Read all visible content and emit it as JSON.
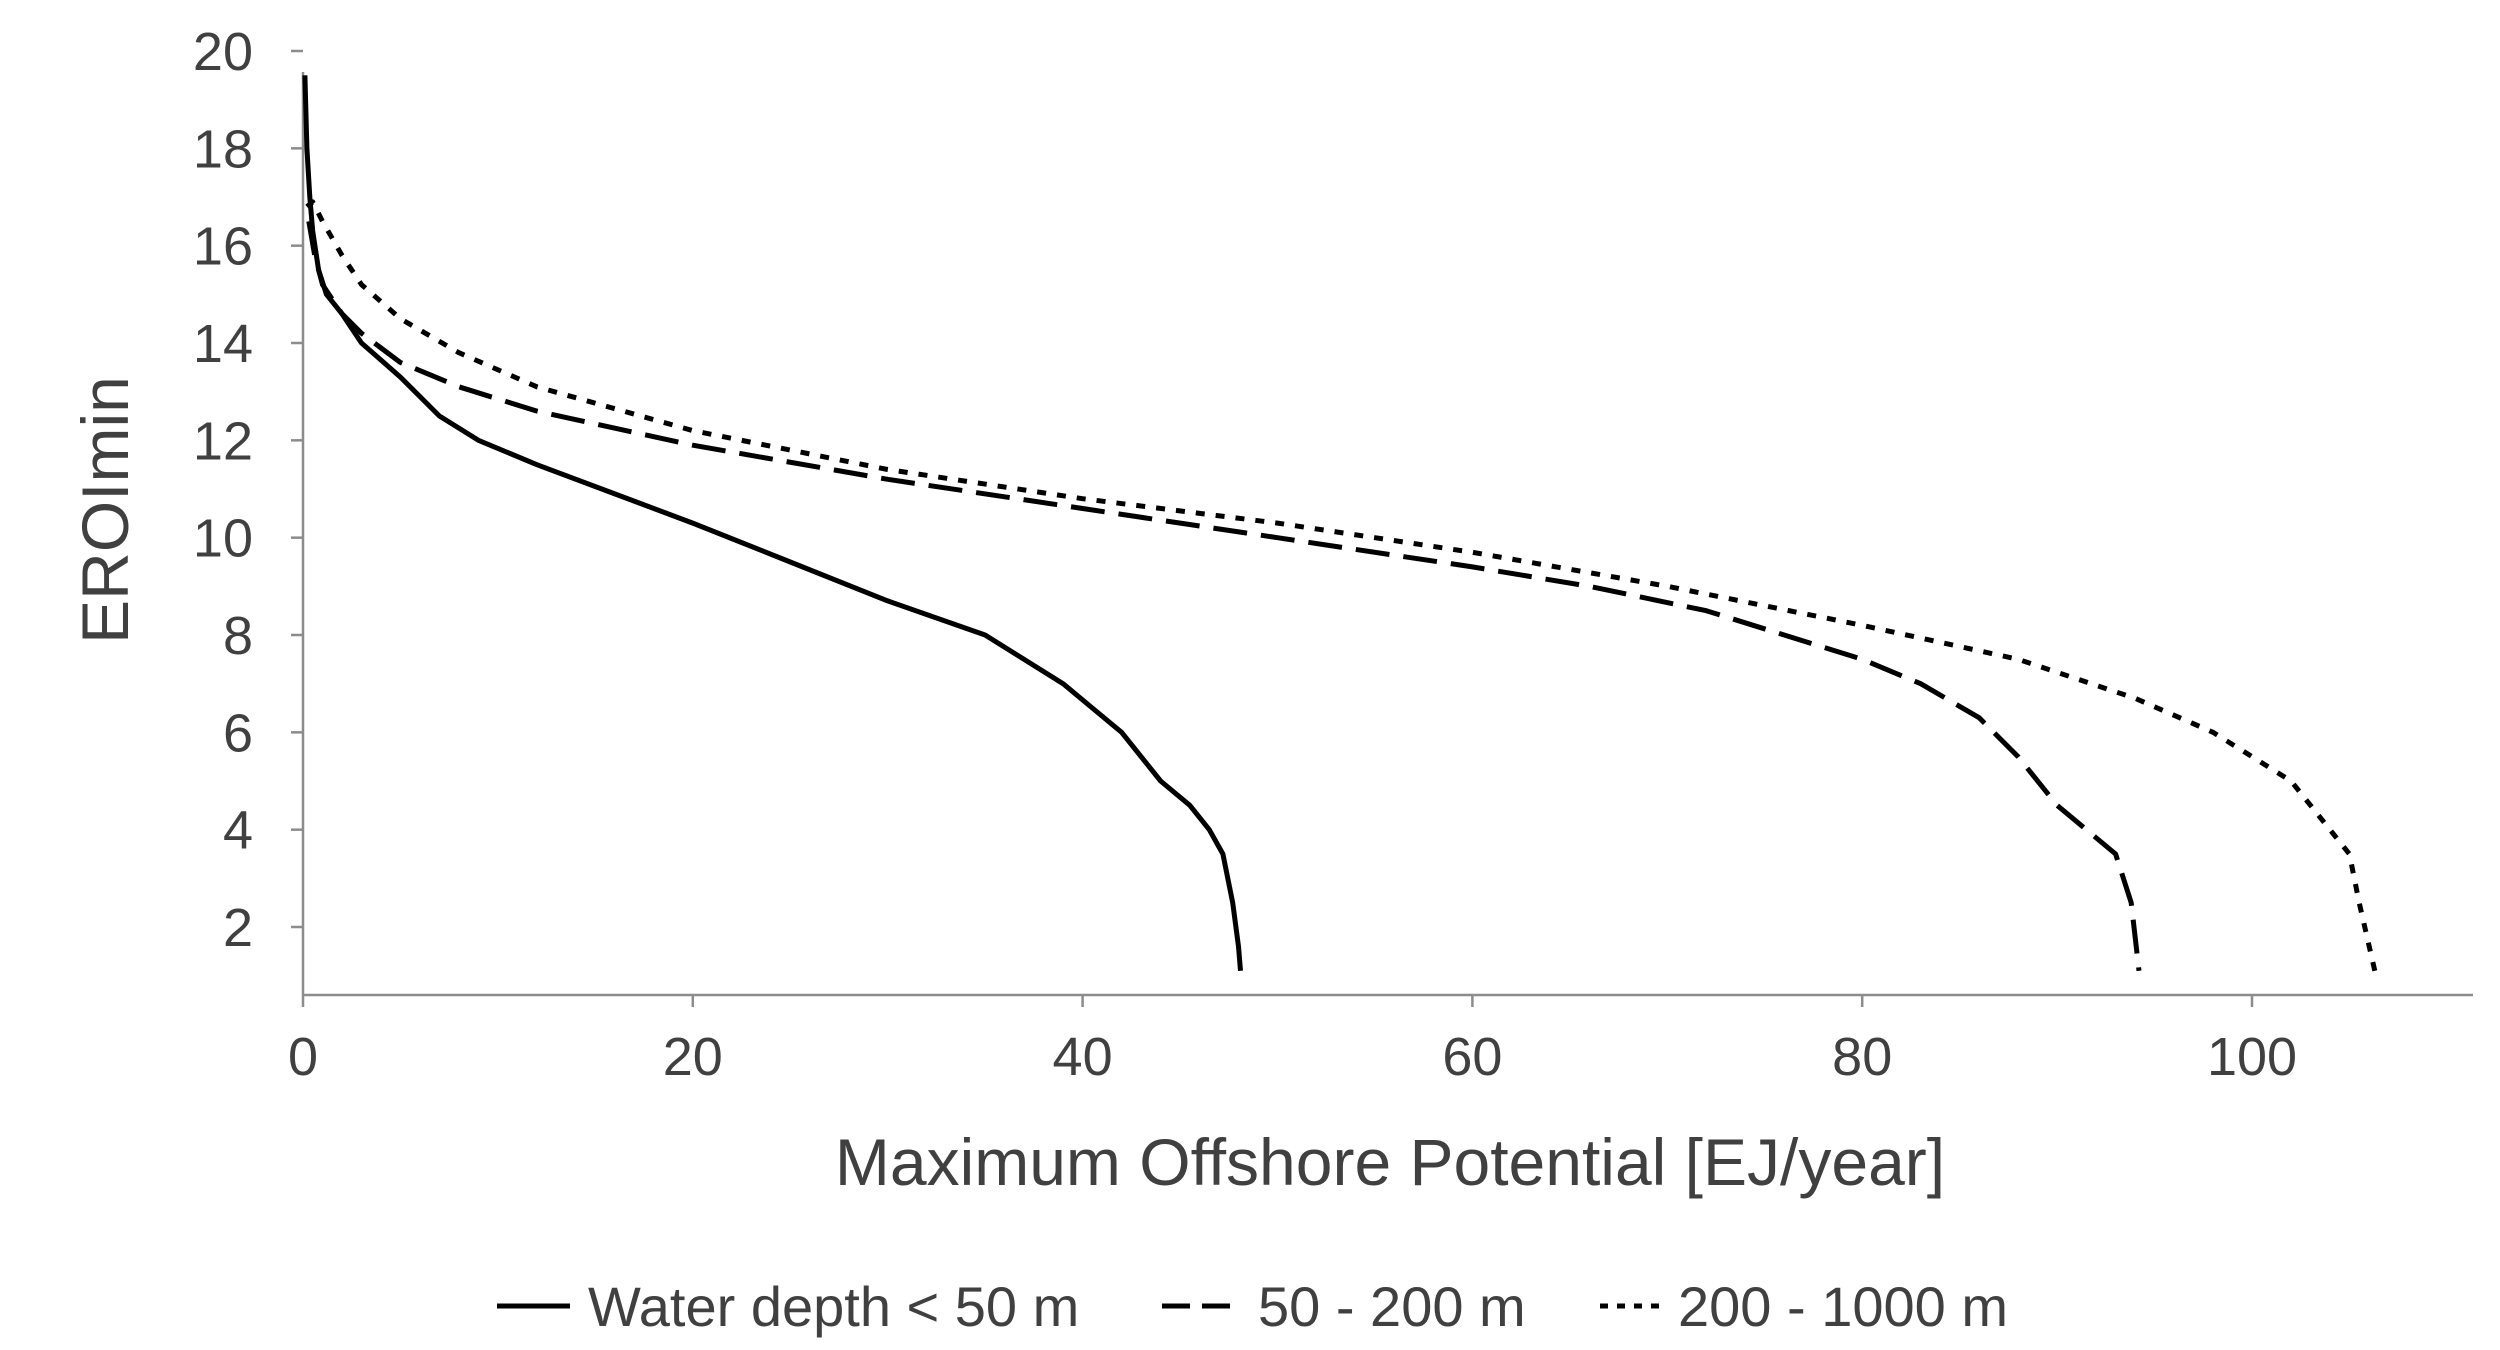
{
  "chart_data": {
    "type": "line",
    "title": "",
    "xlabel": "Maximum Offshore Potential [EJ/year]",
    "ylabel": "EROImin",
    "xlim": [
      0,
      111.6
    ],
    "ylim": [
      1.3,
      20
    ],
    "x_ticks": [
      0,
      20,
      40,
      60,
      80,
      100
    ],
    "y_ticks": [
      2,
      4,
      6,
      8,
      10,
      12,
      14,
      16,
      18,
      20
    ],
    "grid": false,
    "legend_position": "bottom-center",
    "series": [
      {
        "name": "Water depth < 50 m",
        "dash": "solid",
        "color": "#000000",
        "points": [
          [
            0.1,
            19.5
          ],
          [
            0.2,
            18
          ],
          [
            0.35,
            17
          ],
          [
            0.5,
            16.3
          ],
          [
            0.8,
            15.5
          ],
          [
            1.2,
            15
          ],
          [
            2,
            14.6
          ],
          [
            3,
            14
          ],
          [
            5,
            13.3
          ],
          [
            7,
            12.5
          ],
          [
            9,
            12
          ],
          [
            12,
            11.5
          ],
          [
            16,
            10.9
          ],
          [
            20,
            10.3
          ],
          [
            25,
            9.5
          ],
          [
            30,
            8.7
          ],
          [
            35,
            8
          ],
          [
            39,
            7
          ],
          [
            40.5,
            6.5
          ],
          [
            42,
            6
          ],
          [
            44,
            5
          ],
          [
            45.5,
            4.5
          ],
          [
            46.5,
            4
          ],
          [
            47.2,
            3.5
          ],
          [
            47.7,
            2.5
          ],
          [
            48,
            1.6
          ],
          [
            48.1,
            1.1
          ]
        ]
      },
      {
        "name": "50 - 200 m",
        "dash": "dashed",
        "color": "#000000",
        "points": [
          [
            0.3,
            16.5
          ],
          [
            0.6,
            15.8
          ],
          [
            1,
            15.2
          ],
          [
            2,
            14.6
          ],
          [
            3,
            14.2
          ],
          [
            5,
            13.6
          ],
          [
            8,
            13.1
          ],
          [
            12,
            12.6
          ],
          [
            20,
            11.9
          ],
          [
            30,
            11.2
          ],
          [
            40,
            10.6
          ],
          [
            50,
            10
          ],
          [
            60,
            9.4
          ],
          [
            66,
            9
          ],
          [
            72,
            8.5
          ],
          [
            76,
            8
          ],
          [
            80,
            7.5
          ],
          [
            83,
            7
          ],
          [
            86,
            6.3
          ],
          [
            88,
            5.5
          ],
          [
            90,
            4.5
          ],
          [
            93,
            3.5
          ],
          [
            93.8,
            2.5
          ],
          [
            94.2,
            1.1
          ]
        ]
      },
      {
        "name": "200 - 1000 m",
        "dash": "dotted",
        "color": "#000000",
        "points": [
          [
            0.2,
            16.8
          ],
          [
            0.5,
            16.9
          ],
          [
            1,
            16.5
          ],
          [
            2,
            15.8
          ],
          [
            3,
            15.2
          ],
          [
            5,
            14.5
          ],
          [
            8,
            13.8
          ],
          [
            12,
            13.1
          ],
          [
            20,
            12.2
          ],
          [
            30,
            11.4
          ],
          [
            40,
            10.8
          ],
          [
            50,
            10.3
          ],
          [
            60,
            9.7
          ],
          [
            70,
            9
          ],
          [
            80,
            8.2
          ],
          [
            88,
            7.5
          ],
          [
            94,
            6.7
          ],
          [
            98,
            6
          ],
          [
            102,
            5
          ],
          [
            105,
            3.5
          ],
          [
            105.5,
            2.5
          ],
          [
            106.3,
            1.1
          ]
        ]
      }
    ]
  }
}
